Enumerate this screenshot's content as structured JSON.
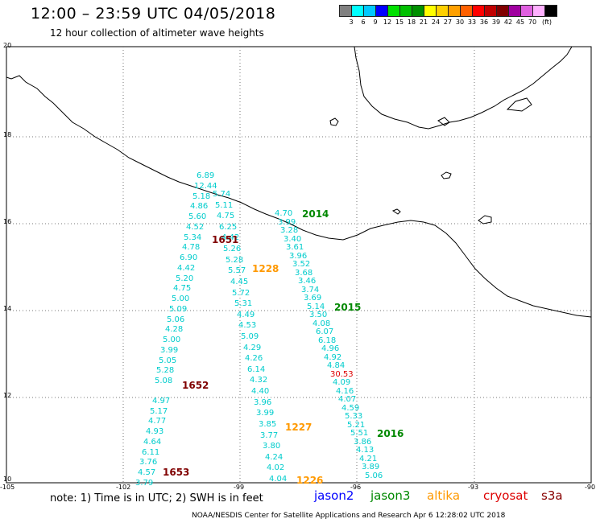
{
  "title": "12:00 – 23:59 UTC 04/05/2018",
  "subtitle": "12 hour collection of altimeter wave heights",
  "colorbar": {
    "colors": [
      "#808080",
      "#00ffff",
      "#00c8ff",
      "#0000ff",
      "#00e000",
      "#00c000",
      "#009000",
      "#ffff00",
      "#ffd000",
      "#ffa000",
      "#ff6000",
      "#ff0000",
      "#c00000",
      "#800000",
      "#a000a0",
      "#e060e0",
      "#ffb0ff",
      "#000000"
    ],
    "labels": [
      "3",
      "6",
      "9",
      "12",
      "15",
      "18",
      "21",
      "24",
      "27",
      "30",
      "33",
      "36",
      "39",
      "42",
      "45",
      "70",
      "(ft)"
    ]
  },
  "lat_labels": [
    "20",
    "18",
    "16",
    "14",
    "12",
    "10"
  ],
  "lon_labels": [
    "-105",
    "-102",
    "-99",
    "-96",
    "-93",
    "-90"
  ],
  "tracks": [
    {
      "name": "track-1651-1652-1653",
      "color": "#00cccc",
      "values": [
        "6.89",
        "12.44",
        "5.18",
        "4.86",
        "5.60",
        "4.52",
        "5.34",
        "4.78",
        "6.90",
        "4.42",
        "5.20",
        "4.75",
        "5.00",
        "5.09",
        "5.06",
        "4.28",
        "5.00",
        "3.99",
        "5.05",
        "5.28",
        "5.08",
        "4.97",
        "5.17",
        "4.77",
        "4.93",
        "4.64",
        "6.11",
        "3.76",
        "4.57",
        "3.79"
      ]
    },
    {
      "name": "track-1228-1227-1226",
      "color": "#00cccc",
      "values": [
        "5.74",
        "5.11",
        "4.75",
        "6.25",
        "4.42",
        "5.26",
        "5.28",
        "5.57",
        "4.45",
        "5.72",
        "5.31",
        "4.49",
        "4.53",
        "5.09",
        "4.29",
        "4.26",
        "6.14",
        "4.32",
        "4.40",
        "3.96",
        "3.99",
        "3.85",
        "3.77",
        "3.80",
        "4.24",
        "4.02",
        "4.04"
      ]
    },
    {
      "name": "track-2014-2015-2016",
      "color": "#00cccc",
      "values": [
        "4.70",
        "3.99",
        "3.28",
        "3.40",
        "3.61",
        "3.96",
        "3.52",
        "3.68",
        "3.46",
        "3.74",
        "3.69",
        "5.14",
        "3.50",
        "4.08",
        "6.07",
        "6.18",
        "4.96",
        "4.92",
        "4.84",
        "30.53",
        "4.09",
        "4.16",
        "4.07",
        "4.59",
        "5.33",
        "5.21",
        "5.51",
        "3.86",
        "4.13",
        "4.21",
        "3.89",
        "5.06"
      ]
    }
  ],
  "time_labels": [
    {
      "text": "1651",
      "color": "#800000"
    },
    {
      "text": "1652",
      "color": "#800000"
    },
    {
      "text": "1653",
      "color": "#800000"
    },
    {
      "text": "1228",
      "color": "#ff9900"
    },
    {
      "text": "1227",
      "color": "#ff9900"
    },
    {
      "text": "1226",
      "color": "#ff9900"
    },
    {
      "text": "2014",
      "color": "#008800"
    },
    {
      "text": "2015",
      "color": "#008800"
    },
    {
      "text": "2016",
      "color": "#008800"
    }
  ],
  "note": "note: 1) Time is in UTC; 2) SWH is in feet",
  "legend": [
    {
      "text": "jason2",
      "color": "#0000ff"
    },
    {
      "text": "jason3",
      "color": "#008800"
    },
    {
      "text": "altika",
      "color": "#ff9900"
    },
    {
      "text": "cryosat",
      "color": "#dd0000"
    },
    {
      "text": "s3a",
      "color": "#880000"
    }
  ],
  "footer": "NOAA/NESDIS Center for Satellite Applications and Research    Apr  6 12:28:02 UTC 2018"
}
